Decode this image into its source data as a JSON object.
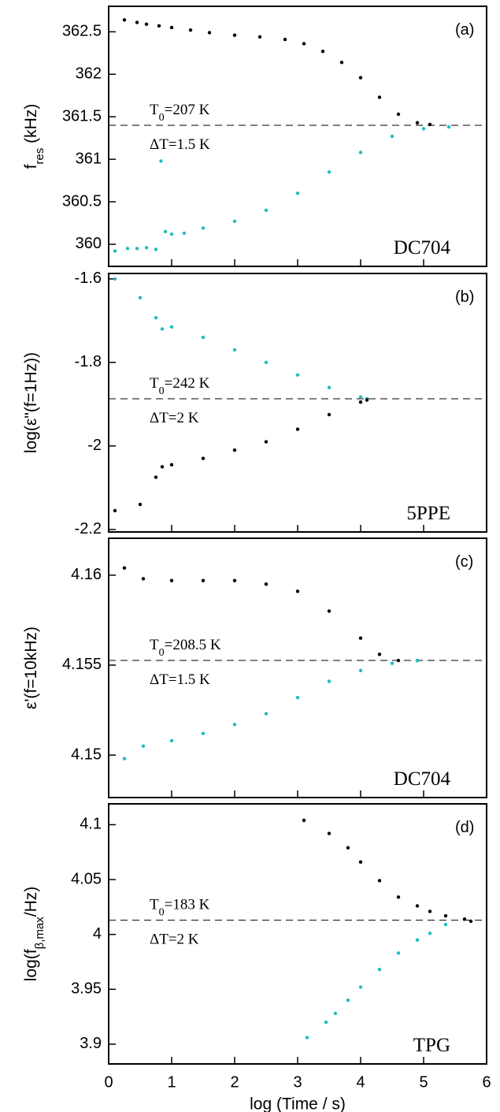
{
  "chart_data": [
    {
      "type": "scatter",
      "panel_label": "(a)",
      "sample": "DC704",
      "ylabel": [
        "f",
        "res",
        " (kHz)"
      ],
      "t0_label": [
        "T",
        "0",
        "=207 K"
      ],
      "delta_t_label": "ΔT=1.5 K",
      "reference_line": 361.4,
      "xlim": [
        0,
        6
      ],
      "xticks": [
        0,
        1,
        2,
        3,
        4,
        5,
        6
      ],
      "show_xtick_labels": false,
      "ylim": [
        359.74,
        362.8
      ],
      "yticks": [
        360,
        360.5,
        361,
        361.5,
        362,
        362.5
      ],
      "series": [
        {
          "color": "#000000",
          "x": [
            0.25,
            0.45,
            0.6,
            0.8,
            1.0,
            1.3,
            1.6,
            2.0,
            2.4,
            2.8,
            3.1,
            3.4,
            3.7,
            4.0,
            4.3,
            4.6,
            4.9,
            5.1
          ],
          "values": [
            362.64,
            362.61,
            362.59,
            362.57,
            362.55,
            362.52,
            362.49,
            362.46,
            362.44,
            362.41,
            362.36,
            362.27,
            362.14,
            361.96,
            361.73,
            361.53,
            361.43,
            361.41
          ]
        },
        {
          "color": "#1fbdbd",
          "x": [
            0.1,
            0.3,
            0.45,
            0.6,
            0.75,
            0.83,
            0.9,
            1.0,
            1.2,
            1.5,
            2.0,
            2.5,
            3.0,
            3.5,
            4.0,
            4.5,
            5.0,
            5.4
          ],
          "values": [
            359.92,
            359.95,
            359.95,
            359.96,
            359.94,
            360.98,
            360.15,
            360.12,
            360.13,
            360.19,
            360.27,
            360.4,
            360.6,
            360.85,
            361.08,
            361.27,
            361.36,
            361.38
          ]
        }
      ]
    },
    {
      "type": "scatter",
      "panel_label": "(b)",
      "sample": "5PPE",
      "ylabel": "log(ε\"(f=1Hz))",
      "t0_label": [
        "T",
        "0",
        "=242 K"
      ],
      "delta_t_label": "ΔT=2 K",
      "reference_line": -1.887,
      "xlim": [
        0,
        6
      ],
      "xticks": [
        0,
        1,
        2,
        3,
        4,
        5,
        6
      ],
      "show_xtick_labels": false,
      "ylim": [
        -2.206,
        -1.587
      ],
      "yticks": [
        -2.2,
        -2,
        -1.8,
        -1.6
      ],
      "series": [
        {
          "color": "#1fbdbd",
          "x": [
            0.1,
            0.5,
            0.75,
            0.85,
            1.0,
            1.5,
            2.0,
            2.5,
            3.0,
            3.5,
            4.0,
            4.1
          ],
          "values": [
            -1.6,
            -1.645,
            -1.693,
            -1.72,
            -1.715,
            -1.74,
            -1.77,
            -1.8,
            -1.83,
            -1.86,
            -1.883,
            -1.887
          ]
        },
        {
          "color": "#000000",
          "x": [
            0.1,
            0.5,
            0.75,
            0.85,
            1.0,
            1.5,
            2.0,
            2.5,
            3.0,
            3.5,
            4.0,
            4.1
          ],
          "values": [
            -2.155,
            -2.14,
            -2.075,
            -2.05,
            -2.045,
            -2.03,
            -2.01,
            -1.99,
            -1.96,
            -1.925,
            -1.895,
            -1.89
          ]
        }
      ]
    },
    {
      "type": "scatter",
      "panel_label": "(c)",
      "sample": "DC704",
      "ylabel": "ε'(f=10kHz)",
      "t0_label": [
        "T",
        "0",
        "=208.5 K"
      ],
      "delta_t_label": "ΔT=1.5 K",
      "reference_line": 4.15526,
      "xlim": [
        0,
        6
      ],
      "xticks": [
        0,
        1,
        2,
        3,
        4,
        5,
        6
      ],
      "show_xtick_labels": false,
      "ylim": [
        4.14764,
        4.16205
      ],
      "yticks": [
        4.15,
        4.155,
        4.16
      ],
      "series": [
        {
          "color": "#000000",
          "x": [
            0.25,
            0.55,
            1.0,
            1.5,
            2.0,
            2.5,
            3.0,
            3.5,
            4.0,
            4.3,
            4.6,
            4.9
          ],
          "values": [
            4.1604,
            4.1598,
            4.1597,
            4.1597,
            4.1597,
            4.1595,
            4.1591,
            4.158,
            4.1565,
            4.1556,
            4.15526,
            4.15525
          ]
        },
        {
          "color": "#1fbdbd",
          "x": [
            0.25,
            0.55,
            1.0,
            1.5,
            2.0,
            2.5,
            3.0,
            3.5,
            4.0,
            4.5,
            4.9
          ],
          "values": [
            4.1498,
            4.1505,
            4.1508,
            4.1512,
            4.1517,
            4.1523,
            4.1532,
            4.1541,
            4.1547,
            4.1551,
            4.15525
          ]
        }
      ]
    },
    {
      "type": "scatter",
      "panel_label": "(d)",
      "sample": "TPG",
      "ylabel": [
        "log(f",
        "β,max",
        "/Hz)"
      ],
      "t0_label": [
        "T",
        "0",
        "=183 K"
      ],
      "delta_t_label": "ΔT=2 K",
      "reference_line": 4.013,
      "xlabel": "log (Time / s)",
      "xlim": [
        0,
        6
      ],
      "xticks": [
        0,
        1,
        2,
        3,
        4,
        5,
        6
      ],
      "show_xtick_labels": true,
      "ylim": [
        3.882,
        4.119
      ],
      "yticks": [
        3.9,
        3.95,
        4,
        4.05,
        4.1
      ],
      "series": [
        {
          "color": "#000000",
          "x": [
            3.1,
            3.5,
            3.8,
            4.0,
            4.3,
            4.6,
            4.9,
            5.1,
            5.35,
            5.65,
            5.75
          ],
          "values": [
            4.104,
            4.092,
            4.079,
            4.066,
            4.049,
            4.034,
            4.026,
            4.021,
            4.017,
            4.014,
            4.012
          ]
        },
        {
          "color": "#1fbdbd",
          "x": [
            3.15,
            3.45,
            3.6,
            3.8,
            4.0,
            4.3,
            4.6,
            4.9,
            5.1,
            5.35
          ],
          "values": [
            3.906,
            3.92,
            3.928,
            3.94,
            3.952,
            3.968,
            3.983,
            3.995,
            4.001,
            4.009
          ]
        }
      ]
    }
  ]
}
